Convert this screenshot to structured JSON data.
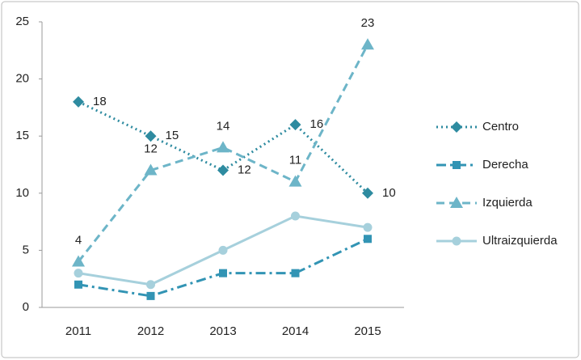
{
  "chart_data": {
    "type": "line",
    "x": [
      2011,
      2012,
      2013,
      2014,
      2015
    ],
    "ylim": [
      0,
      25
    ],
    "yticks": [
      0,
      5,
      10,
      15,
      20,
      25
    ],
    "legend": "right",
    "series": [
      {
        "name": "Centro",
        "color": "#2e8ba0",
        "dash": "dotted",
        "marker": "diamond",
        "data_labels": true,
        "values": [
          18,
          15,
          12,
          16,
          10
        ]
      },
      {
        "name": "Derecha",
        "color": "#3294b4",
        "dash": "dash-dot",
        "marker": "square",
        "values": [
          2,
          1,
          3,
          3,
          6
        ]
      },
      {
        "name": "Izquierda",
        "color": "#6db5c8",
        "dash": "dashed",
        "marker": "triangle",
        "data_labels": true,
        "values": [
          4,
          12,
          14,
          11,
          23
        ]
      },
      {
        "name": "Ultraizquierda",
        "color": "#a6d0dc",
        "dash": "solid",
        "marker": "circle",
        "values": [
          3,
          2,
          5,
          8,
          7
        ]
      }
    ]
  }
}
